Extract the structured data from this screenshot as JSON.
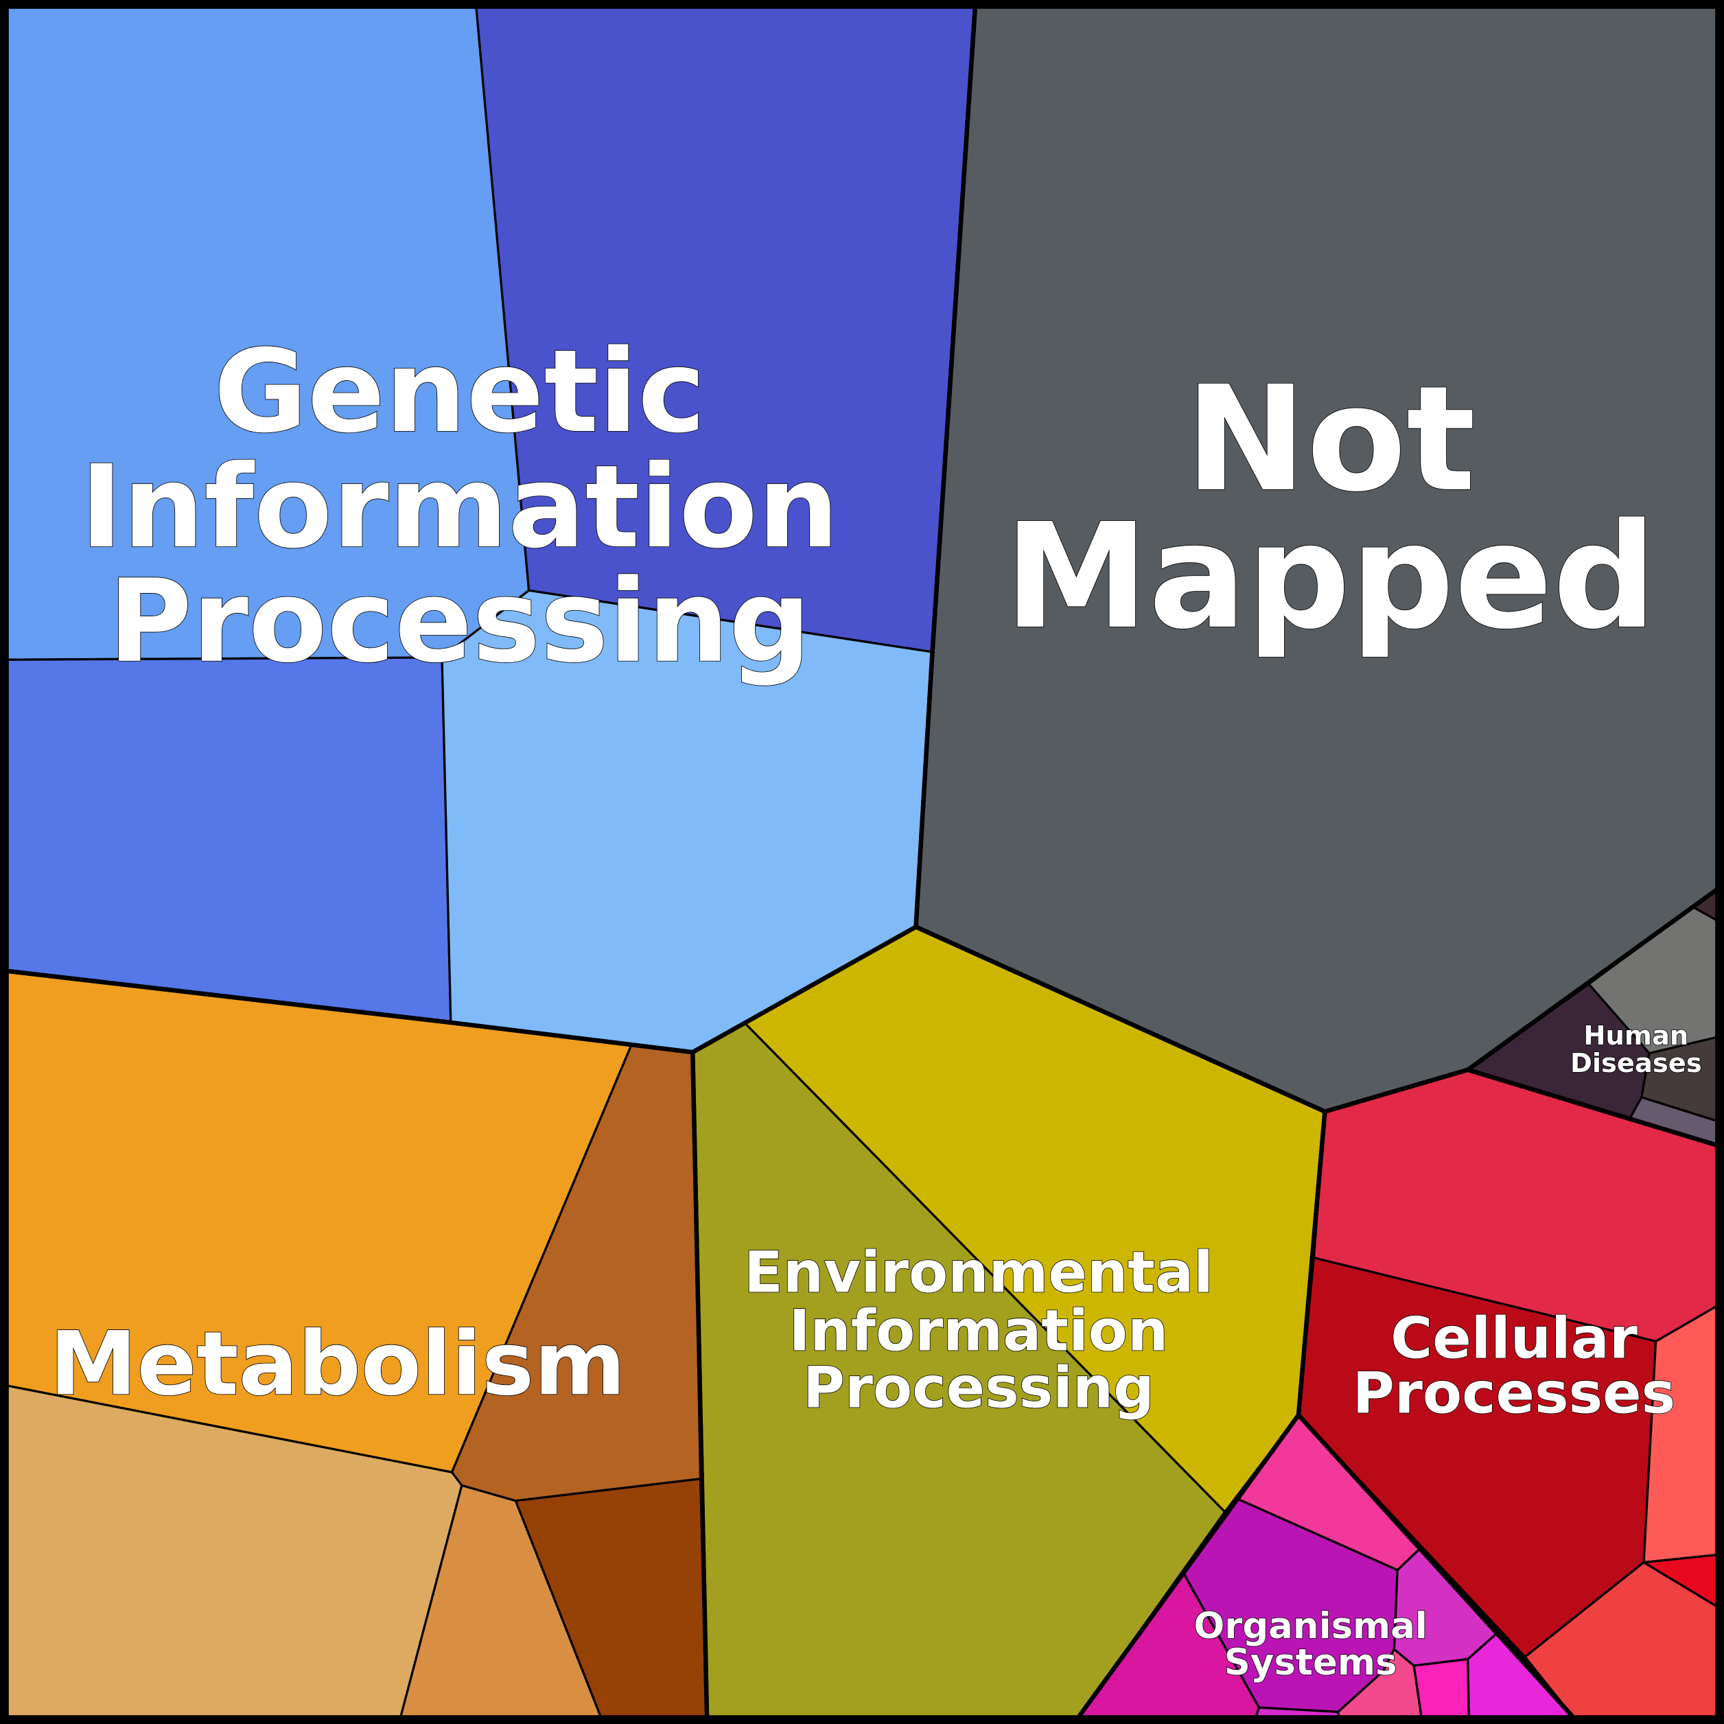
{
  "labels": {
    "genetic": [
      "Genetic",
      "Information",
      "Processing"
    ],
    "not_mapped": [
      "Not",
      "Mapped"
    ],
    "metabolism": [
      "Metabolism"
    ],
    "environmental": [
      "Environmental",
      "Information",
      "Processing"
    ],
    "cellular": [
      "Cellular",
      "Processes"
    ],
    "human_diseases": [
      "Human",
      "Diseases"
    ],
    "organismal": [
      "Organismal",
      "Systems"
    ]
  },
  "colors": {
    "genetic": [
      "#659EF2",
      "#4A53CC",
      "#5577E8",
      "#80BAF8"
    ],
    "not_mapped": [
      "#575C60"
    ],
    "human_diseases": [
      "#3D2B2F",
      "#737372",
      "#3A2638",
      "#453B3A",
      "#665A6E"
    ],
    "cellular": [
      "#E22947",
      "#BA0A18",
      "#FD5A58",
      "#E8091F",
      "#EF4042"
    ],
    "organismal": [
      "#F2389A",
      "#BA15B4",
      "#D430C3",
      "#D8169F",
      "#D52ACC",
      "#F24A8C",
      "#FA22B8",
      "#E826DA"
    ],
    "environmental": [
      "#A3A01F",
      "#CDB600"
    ],
    "metabolism": [
      "#EF9E20",
      "#B46323",
      "#DDAA62",
      "#D98F43",
      "#964106"
    ]
  }
}
